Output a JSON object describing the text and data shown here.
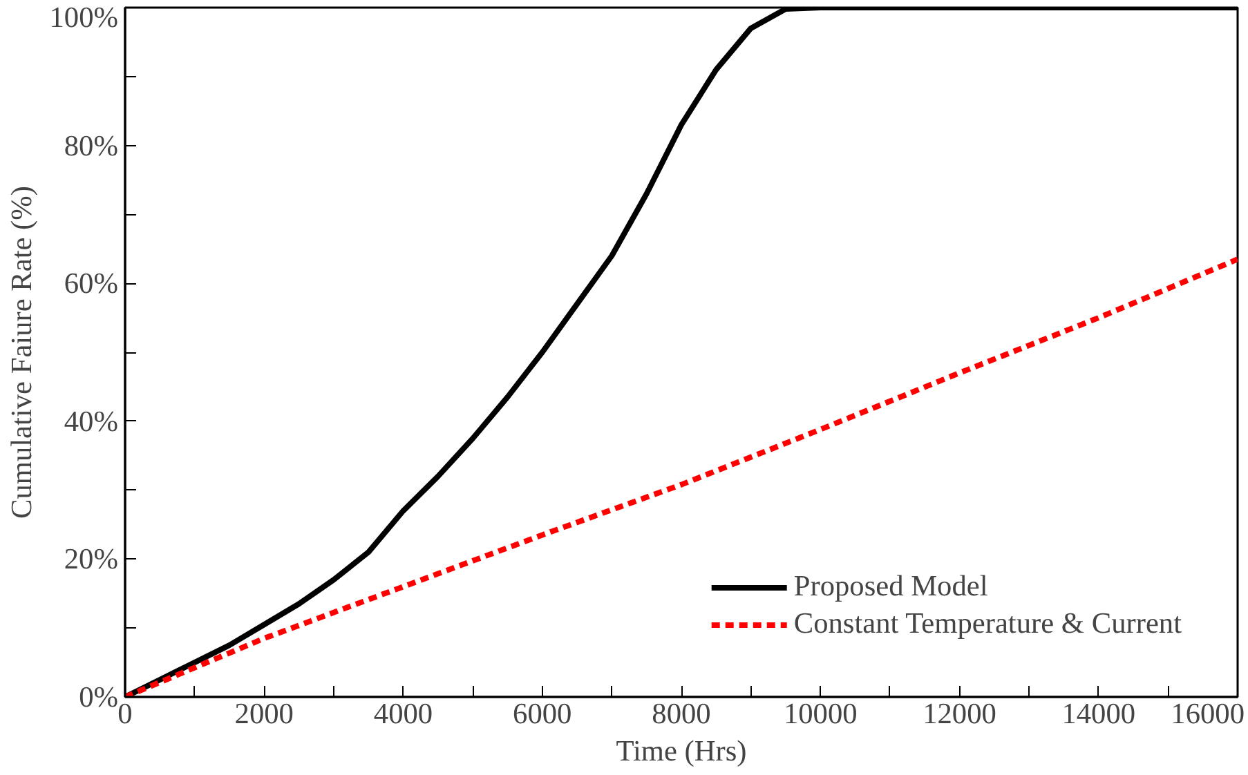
{
  "chart_data": {
    "type": "line",
    "xlabel": "Time (Hrs)",
    "ylabel": "Cumulative Faiure Rate (%)",
    "xlim": [
      0,
      16000
    ],
    "ylim": [
      0,
      100
    ],
    "xticks": [
      0,
      {
        "value": 1000,
        "label": null
      },
      2000,
      {
        "value": 3000,
        "label": null
      },
      4000,
      {
        "value": 5000,
        "label": null
      },
      6000,
      {
        "value": 7000,
        "label": null
      },
      8000,
      {
        "value": 9000,
        "label": null
      },
      10000,
      {
        "value": 11000,
        "label": null
      },
      12000,
      {
        "value": 13000,
        "label": null
      },
      14000,
      {
        "value": 15000,
        "label": null
      },
      16000
    ],
    "yticks": [
      {
        "value": 0,
        "label": "0%"
      },
      {
        "value": 10,
        "label": null
      },
      {
        "value": 20,
        "label": "20%"
      },
      {
        "value": 30,
        "label": null
      },
      {
        "value": 40,
        "label": "40%"
      },
      {
        "value": 50,
        "label": null
      },
      {
        "value": 60,
        "label": "60%"
      },
      {
        "value": 70,
        "label": null
      },
      {
        "value": 80,
        "label": "80%"
      },
      {
        "value": 90,
        "label": null
      },
      {
        "value": 100,
        "label": "100%"
      }
    ],
    "grid": false,
    "legend": "bottom right",
    "marker": "none",
    "series": [
      {
        "name": "Proposed Model",
        "color": "#000000",
        "line_style": "solid",
        "x": [
          0,
          500,
          1000,
          1500,
          2000,
          2500,
          3000,
          3500,
          4000,
          4500,
          5000,
          5500,
          6000,
          6500,
          7000,
          7500,
          8000,
          8500,
          9000,
          9500,
          10000,
          16000
        ],
        "values": [
          0,
          2.5,
          5,
          7.5,
          10.5,
          13.5,
          17,
          21,
          27,
          32,
          37.5,
          43.5,
          50,
          57,
          64,
          73,
          83,
          91,
          97,
          99.8,
          100,
          100
        ]
      },
      {
        "name": "Constant Temperature & Current",
        "color": "#ff0000",
        "line_style": "dashed",
        "x": [
          0,
          2000,
          4000,
          6000,
          8000,
          10000,
          12000,
          14000,
          16000
        ],
        "values": [
          0,
          8.5,
          16,
          23.5,
          30.8,
          38.8,
          47,
          55,
          63.5
        ]
      }
    ]
  }
}
